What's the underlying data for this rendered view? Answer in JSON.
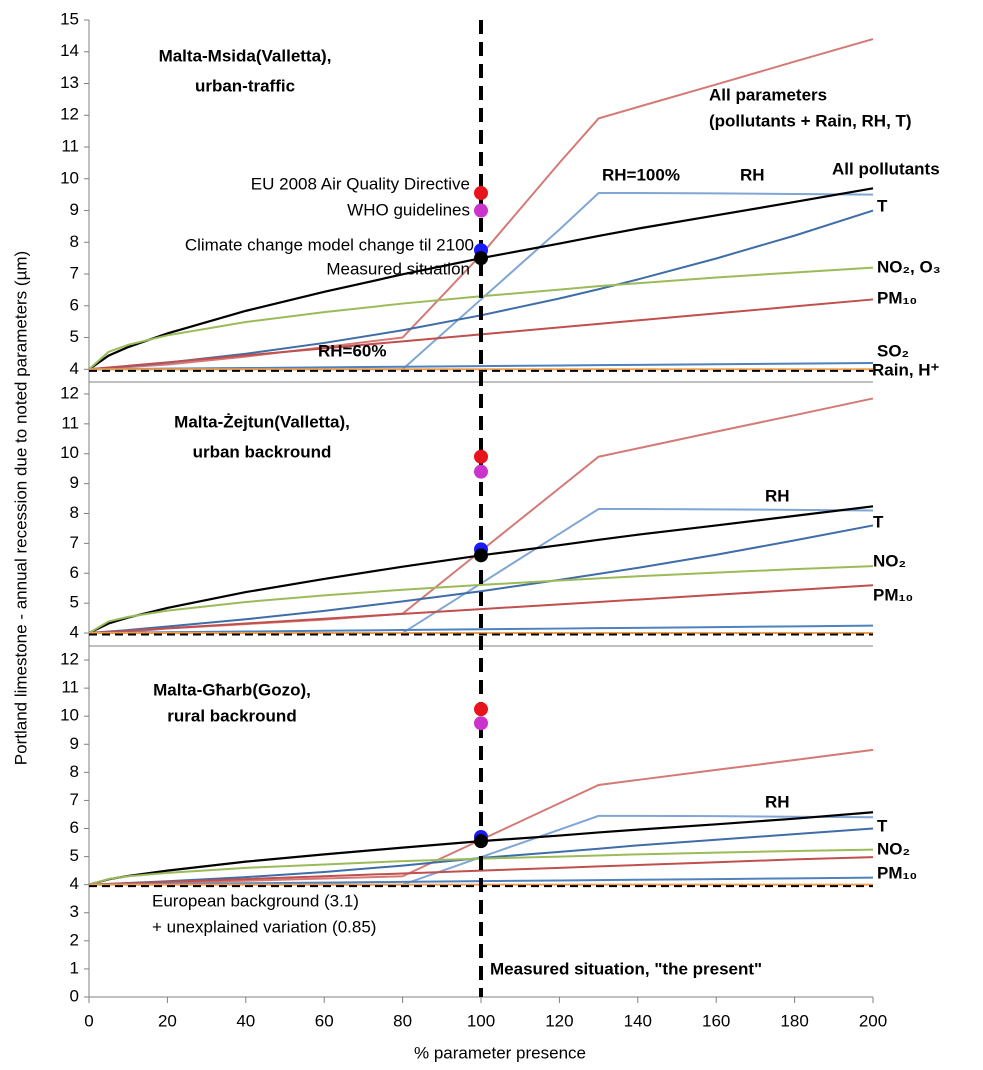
{
  "chart_data": {
    "type": "line",
    "xlabel": "% parameter presence",
    "ylabel": "Portland limestone - annual recession due to noted parameters (µm)",
    "xlim": [
      0,
      200
    ],
    "xticks": [
      0,
      20,
      40,
      60,
      80,
      100,
      120,
      140,
      160,
      180,
      200
    ],
    "marker_x": 100,
    "x": [
      0,
      5,
      10,
      20,
      40,
      60,
      80,
      100,
      120,
      130,
      140,
      160,
      180,
      200
    ],
    "panels": [
      {
        "ylim": [
          3.6,
          15
        ],
        "yticks": [
          4,
          5,
          6,
          7,
          8,
          9,
          10,
          11,
          12,
          13,
          14,
          15
        ],
        "baseline": 3.95,
        "annotations": [
          "Malta-Msida(Valletta),",
          "urban-traffic",
          "(pollutants + Rain, RH, T)",
          "RH=100%",
          "RH=60%"
        ],
        "series": [
          {
            "name": "All parameters",
            "color": "#d47a76",
            "values": [
              4,
              4.04,
              4.07,
              4.15,
              4.4,
              4.7,
              5.0,
              7.6,
              10.5,
              11.9,
              12.26,
              12.97,
              13.69,
              14.4
            ]
          },
          {
            "name": "RH",
            "color": "#7fa6d4",
            "values": [
              4,
              4,
              4,
              4,
              4,
              4,
              4,
              6.2,
              8.4,
              9.55,
              9.55,
              9.54,
              9.52,
              9.5
            ]
          },
          {
            "name": "All pollutants",
            "color": "#000000",
            "values": [
              4,
              4.43,
              4.7,
              5.13,
              5.84,
              6.44,
              6.99,
              7.5,
              7.96,
              8.2,
              8.43,
              8.85,
              9.27,
              9.7
            ]
          },
          {
            "name": "T",
            "color": "#3e6da8",
            "values": [
              4,
              4.05,
              4.1,
              4.21,
              4.49,
              4.83,
              5.23,
              5.7,
              6.23,
              6.52,
              6.83,
              7.49,
              8.21,
              9.0
            ]
          },
          {
            "name": "NO₂, O₃",
            "color": "#9bbb59",
            "values": [
              4,
              4.55,
              4.77,
              5.07,
              5.49,
              5.8,
              6.07,
              6.3,
              6.51,
              6.62,
              6.71,
              6.89,
              7.05,
              7.2
            ]
          },
          {
            "name": "PM₁₀",
            "color": "#c0504d",
            "values": [
              4,
              4.055,
              4.11,
              4.22,
              4.44,
              4.66,
              4.88,
              5.1,
              5.32,
              5.43,
              5.54,
              5.76,
              5.98,
              6.2
            ]
          },
          {
            "name": "SO₂",
            "color": "#4f81bd",
            "values": [
              4,
              4.005,
              4.01,
              4.02,
              4.04,
              4.06,
              4.08,
              4.1,
              4.12,
              4.13,
              4.14,
              4.16,
              4.18,
              4.2
            ]
          },
          {
            "name": "Rain, H⁺",
            "color": "#f0a050",
            "values": [
              4,
              4,
              4,
              4,
              4,
              4,
              4,
              4,
              4,
              4,
              4,
              4,
              4,
              4
            ]
          }
        ],
        "points": [
          {
            "name": "EU 2008 Air Quality Directive",
            "color": "#e8141c",
            "value": 9.55
          },
          {
            "name": "WHO guidelines",
            "color": "#cc33cc",
            "value": 9.0
          },
          {
            "name": "Climate change model change til 2100",
            "color": "#1a1aff",
            "value": 7.75
          },
          {
            "name": "Measured situation",
            "color": "#000000",
            "value": 7.5
          }
        ]
      },
      {
        "ylim": [
          3.6,
          12.4
        ],
        "yticks": [
          4,
          5,
          6,
          7,
          8,
          9,
          10,
          11,
          12
        ],
        "baseline": 3.95,
        "annotations": [
          "Malta-Żejtun(Valletta),",
          "urban backround"
        ],
        "series": [
          {
            "color": "#d47a76",
            "values": [
              4,
              4.02,
              4.04,
              4.15,
              4.3,
              4.45,
              4.65,
              6.75,
              8.85,
              9.9,
              10.18,
              10.74,
              11.29,
              11.85
            ]
          },
          {
            "name": "RH",
            "color": "#7fa6d4",
            "values": [
              4,
              4,
              4,
              4,
              4,
              4,
              4,
              5.66,
              7.32,
              8.15,
              8.15,
              8.14,
              8.12,
              8.1
            ]
          },
          {
            "color": "#000000",
            "values": [
              4,
              4.32,
              4.52,
              4.84,
              5.37,
              5.81,
              6.22,
              6.6,
              6.94,
              7.12,
              7.29,
              7.6,
              7.92,
              8.24
            ]
          },
          {
            "name": "T",
            "color": "#3e6da8",
            "values": [
              4,
              4.05,
              4.1,
              4.22,
              4.46,
              4.74,
              5.06,
              5.4,
              5.78,
              5.98,
              6.18,
              6.62,
              7.1,
              7.6
            ]
          },
          {
            "name": "NO₂",
            "color": "#9bbb59",
            "values": [
              4,
              4.39,
              4.54,
              4.75,
              5.04,
              5.26,
              5.45,
              5.61,
              5.76,
              5.83,
              5.9,
              6.02,
              6.14,
              6.24
            ]
          },
          {
            "name": "PM₁₀",
            "color": "#c0504d",
            "values": [
              4,
              4.04,
              4.08,
              4.16,
              4.32,
              4.48,
              4.64,
              4.8,
              4.96,
              5.04,
              5.12,
              5.28,
              5.44,
              5.6
            ]
          },
          {
            "color": "#4f81bd",
            "values": [
              4,
              4.006,
              4.013,
              4.025,
              4.05,
              4.075,
              4.1,
              4.125,
              4.15,
              4.163,
              4.175,
              4.2,
              4.225,
              4.25
            ]
          },
          {
            "color": "#f0a050",
            "values": [
              4,
              4,
              4,
              4,
              4,
              4,
              4,
              4,
              4,
              4,
              4,
              4,
              4,
              4
            ]
          }
        ],
        "points": [
          {
            "color": "#e8141c",
            "value": 9.9
          },
          {
            "color": "#cc33cc",
            "value": 9.4
          },
          {
            "color": "#1a1aff",
            "value": 6.8
          },
          {
            "color": "#000000",
            "value": 6.6
          }
        ]
      },
      {
        "ylim": [
          0,
          12.5
        ],
        "yticks": [
          0,
          1,
          2,
          3,
          4,
          5,
          6,
          7,
          8,
          9,
          10,
          11,
          12
        ],
        "baseline": 3.95,
        "annotations": [
          "Malta-Għarb(Gozo),",
          "rural backround",
          "European background (3.1)",
          "+ unexplained variation (0.85)",
          "Measured situation, \"the present\""
        ],
        "series": [
          {
            "color": "#d47a76",
            "values": [
              4,
              4.02,
              4.03,
              4.07,
              4.14,
              4.22,
              4.3,
              5.6,
              6.9,
              7.55,
              7.73,
              8.09,
              8.44,
              8.8
            ]
          },
          {
            "name": "RH",
            "color": "#7fa6d4",
            "values": [
              4,
              4,
              4,
              4,
              4,
              4,
              4,
              4.98,
              5.96,
              6.45,
              6.45,
              6.44,
              6.42,
              6.4
            ]
          },
          {
            "color": "#000000",
            "values": [
              4,
              4.19,
              4.31,
              4.5,
              4.82,
              5.08,
              5.32,
              5.55,
              5.75,
              5.86,
              5.96,
              6.15,
              6.35,
              6.58
            ]
          },
          {
            "name": "T",
            "color": "#3e6da8",
            "values": [
              4,
              4.03,
              4.06,
              4.12,
              4.27,
              4.45,
              4.68,
              4.95,
              5.17,
              5.28,
              5.4,
              5.6,
              5.8,
              6.0
            ]
          },
          {
            "name": "NO₂",
            "color": "#9bbb59",
            "values": [
              4,
              4.2,
              4.3,
              4.42,
              4.6,
              4.72,
              4.84,
              4.93,
              5.0,
              5.04,
              5.08,
              5.14,
              5.2,
              5.25
            ]
          },
          {
            "name": "PM₁₀",
            "color": "#c0504d",
            "values": [
              4,
              4.025,
              4.05,
              4.1,
              4.2,
              4.3,
              4.4,
              4.5,
              4.6,
              4.65,
              4.7,
              4.8,
              4.9,
              4.98
            ]
          },
          {
            "color": "#4f81bd",
            "values": [
              4,
              4.006,
              4.013,
              4.025,
              4.05,
              4.075,
              4.1,
              4.125,
              4.15,
              4.163,
              4.175,
              4.2,
              4.225,
              4.25
            ]
          },
          {
            "color": "#f0a050",
            "values": [
              4,
              4,
              4,
              4,
              4,
              4,
              4,
              4,
              4,
              4,
              4,
              4,
              4,
              4
            ]
          }
        ],
        "points": [
          {
            "color": "#e8141c",
            "value": 10.25
          },
          {
            "color": "#cc33cc",
            "value": 9.75
          },
          {
            "color": "#1a1aff",
            "value": 5.7
          },
          {
            "color": "#000000",
            "value": 5.55
          }
        ]
      }
    ]
  }
}
